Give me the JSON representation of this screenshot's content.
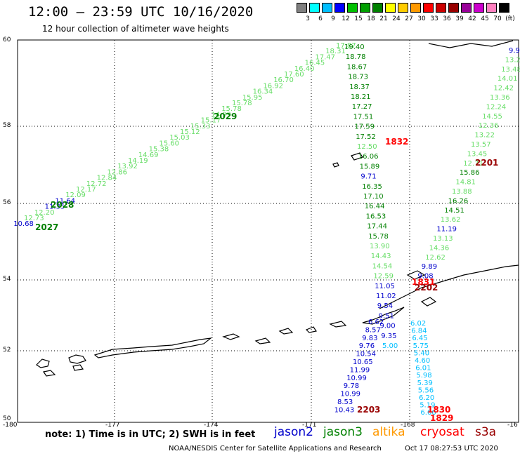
{
  "header": {
    "title": "12:00 — 23:59 UTC 10/16/2020",
    "subtitle": "12 hour collection of altimeter wave heights"
  },
  "scale": {
    "labels": [
      "3",
      "6",
      "9",
      "12",
      "15",
      "18",
      "21",
      "24",
      "27",
      "30",
      "33",
      "36",
      "39",
      "42",
      "45",
      "70",
      "(ft)"
    ],
    "colors": [
      "#808080",
      "#00ffff",
      "#00bfff",
      "#0000ff",
      "#00c000",
      "#00a000",
      "#008000",
      "#ffff00",
      "#ffcc00",
      "#ff9900",
      "#ff0000",
      "#cc0000",
      "#990000",
      "#990099",
      "#cc00cc",
      "#ff80c0",
      "#000000"
    ]
  },
  "axes": {
    "lat_labels": [
      "60",
      "58",
      "56",
      "54",
      "52",
      "50"
    ],
    "lon_labels": [
      "-180",
      "-177",
      "-174",
      "-171",
      "-168",
      "-16"
    ]
  },
  "track_colors": {
    "jason2": "#0000cc",
    "jason3": "#008000",
    "jason3_light": "#66dd66",
    "altika": "#ff9900",
    "cryosat": "#ff0000",
    "s3a": "#990000",
    "cyan": "#00bfff"
  },
  "tracks": {
    "track_2029_upper": [
      "17.87",
      "18.31",
      "17.47",
      "16.45",
      "16.40",
      "17.60",
      "16.70",
      "16.92",
      "16.34",
      "15.95",
      "15.78",
      "15.78",
      "14.99",
      "15.17",
      "15.33",
      "15.12",
      "15.03",
      "15.60",
      "15.38",
      "14.69",
      "14.19",
      "13.92",
      "12.86",
      "12.84",
      "12.72",
      "12.17",
      "12.09",
      "11.64",
      "11.35",
      "12.20",
      "12.73",
      "10.68"
    ],
    "track_central": [
      "19.40",
      "18.78",
      "18.67",
      "18.73",
      "18.37",
      "18.21",
      "17.27",
      "17.51",
      "17.59",
      "17.52",
      "12.50",
      "16.06",
      "15.89",
      "9.71",
      "16.35",
      "17.10",
      "16.44",
      "16.53",
      "17.44",
      "15.78",
      "13.90",
      "14.43",
      "14.54",
      "12.59",
      "11.05",
      "11.02",
      "9.54",
      "9.51",
      "9.00",
      "9.35",
      "5.00"
    ],
    "track_right": [
      "9.9",
      "13.2",
      "13.48",
      "14.01",
      "12.42",
      "13.36",
      "12.24",
      "14.55",
      "12.36",
      "13.22",
      "13.57",
      "13.45",
      "12.71",
      "15.86",
      "14.81",
      "13.88",
      "16.26",
      "14.51",
      "13.62",
      "11.19",
      "13.13",
      "14.36",
      "12.62",
      "9.89",
      "9.08"
    ],
    "track_lower_left": [
      "6.62",
      "8.57",
      "9.83",
      "9.76",
      "10.54",
      "10.65",
      "11.99",
      "10.99",
      "9.78",
      "10.99",
      "8.53",
      "10.43"
    ],
    "track_lower_right": [
      "6.02",
      "6.84",
      "6.45",
      "5.75",
      "5.40",
      "4.60",
      "6.01",
      "5.98",
      "5.39",
      "5.56",
      "6.20",
      "5.19",
      "6.66"
    ]
  },
  "pass_labels": {
    "p2029": "2029",
    "p2028": "2028",
    "p2027": "2027",
    "p1832": "1832",
    "p2201": "2201",
    "p1831": "1831",
    "p2202": "2202",
    "p2203": "2203",
    "p1830": "1830",
    "p1829": "1829"
  },
  "footer": {
    "note": "note: 1) Time is in UTC; 2) SWH is in feet",
    "legend": [
      "jason2",
      "jason3",
      "altika",
      "cryosat",
      "s3a"
    ],
    "credit": "NOAA/NESDIS Center for Satellite Applications and Research",
    "stamp": "Oct 17 08:27:53 UTC 2020"
  }
}
